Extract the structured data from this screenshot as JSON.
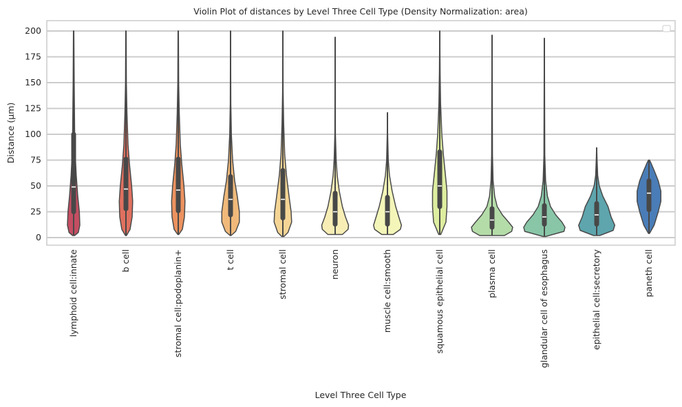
{
  "chart_data": {
    "type": "violin",
    "title": "Violin Plot of distances by Level Three Cell Type (Density Normalization: area)",
    "xlabel": "Level Three Cell Type",
    "ylabel": "Distance (µm)",
    "ylim": [
      -7,
      210
    ],
    "yticks": [
      0,
      25,
      50,
      75,
      100,
      125,
      150,
      175,
      200
    ],
    "grid": true,
    "legend": "top-right (empty)",
    "categories": [
      {
        "name": "lymphoid cell:innate",
        "color": "#c44e62",
        "min": 2,
        "q1": 25,
        "median": 49,
        "q3": 100,
        "max": 200,
        "density": [
          [
            2,
            0.1
          ],
          [
            5,
            0.45
          ],
          [
            12,
            0.6
          ],
          [
            25,
            0.55
          ],
          [
            40,
            0.4
          ],
          [
            60,
            0.25
          ],
          [
            80,
            0.15
          ],
          [
            100,
            0.1
          ],
          [
            150,
            0.05
          ],
          [
            200,
            0.02
          ]
        ]
      },
      {
        "name": "b cell",
        "color": "#e0705f",
        "min": 2,
        "q1": 28,
        "median": 47,
        "q3": 76,
        "max": 200,
        "density": [
          [
            2,
            0.05
          ],
          [
            8,
            0.4
          ],
          [
            20,
            0.6
          ],
          [
            35,
            0.65
          ],
          [
            50,
            0.55
          ],
          [
            70,
            0.35
          ],
          [
            90,
            0.2
          ],
          [
            120,
            0.1
          ],
          [
            150,
            0.04
          ],
          [
            200,
            0.02
          ]
        ]
      },
      {
        "name": "stromal cell:podoplanin+",
        "color": "#ec925f",
        "min": 3,
        "q1": 26,
        "median": 46,
        "q3": 76,
        "max": 200,
        "density": [
          [
            3,
            0.05
          ],
          [
            8,
            0.4
          ],
          [
            20,
            0.6
          ],
          [
            35,
            0.65
          ],
          [
            50,
            0.55
          ],
          [
            70,
            0.35
          ],
          [
            90,
            0.2
          ],
          [
            120,
            0.1
          ],
          [
            150,
            0.04
          ],
          [
            200,
            0.02
          ]
        ]
      },
      {
        "name": "t cell",
        "color": "#f0b97a",
        "min": 2,
        "q1": 22,
        "median": 37,
        "q3": 59,
        "max": 200,
        "density": [
          [
            2,
            0.05
          ],
          [
            6,
            0.5
          ],
          [
            15,
            0.85
          ],
          [
            25,
            0.85
          ],
          [
            40,
            0.65
          ],
          [
            55,
            0.4
          ],
          [
            75,
            0.2
          ],
          [
            100,
            0.08
          ],
          [
            130,
            0.03
          ],
          [
            200,
            0.01
          ]
        ]
      },
      {
        "name": "stromal cell",
        "color": "#f5d595",
        "min": 1,
        "q1": 19,
        "median": 37,
        "q3": 65,
        "max": 200,
        "density": [
          [
            1,
            0.1
          ],
          [
            5,
            0.5
          ],
          [
            15,
            0.85
          ],
          [
            25,
            0.8
          ],
          [
            40,
            0.6
          ],
          [
            60,
            0.35
          ],
          [
            80,
            0.18
          ],
          [
            110,
            0.08
          ],
          [
            140,
            0.03
          ],
          [
            200,
            0.01
          ]
        ]
      },
      {
        "name": "neuron",
        "color": "#f7edb5",
        "min": 3,
        "q1": 13,
        "median": 25,
        "q3": 43,
        "max": 194,
        "density": [
          [
            3,
            0.7
          ],
          [
            8,
            1.25
          ],
          [
            12,
            1.3
          ],
          [
            20,
            1.0
          ],
          [
            30,
            0.7
          ],
          [
            45,
            0.4
          ],
          [
            60,
            0.2
          ],
          [
            75,
            0.1
          ],
          [
            100,
            0.03
          ],
          [
            194,
            0.01
          ]
        ]
      },
      {
        "name": "muscle cell:smooth",
        "color": "#f3f6b8",
        "min": 3,
        "q1": 13,
        "median": 25,
        "q3": 39,
        "max": 121,
        "density": [
          [
            3,
            0.55
          ],
          [
            8,
            1.25
          ],
          [
            12,
            1.35
          ],
          [
            20,
            1.1
          ],
          [
            30,
            0.8
          ],
          [
            45,
            0.45
          ],
          [
            60,
            0.2
          ],
          [
            75,
            0.08
          ],
          [
            100,
            0.02
          ],
          [
            121,
            0.01
          ]
        ]
      },
      {
        "name": "squamous epithelial cell",
        "color": "#deeea0",
        "min": 3,
        "q1": 30,
        "median": 50,
        "q3": 83,
        "max": 200,
        "density": [
          [
            3,
            0.1
          ],
          [
            15,
            0.6
          ],
          [
            30,
            0.7
          ],
          [
            45,
            0.7
          ],
          [
            60,
            0.55
          ],
          [
            80,
            0.35
          ],
          [
            100,
            0.2
          ],
          [
            130,
            0.08
          ],
          [
            160,
            0.03
          ],
          [
            200,
            0.01
          ]
        ]
      },
      {
        "name": "plasma cell",
        "color": "#b4dca8",
        "min": 2,
        "q1": 10,
        "median": 17,
        "q3": 28,
        "max": 196,
        "density": [
          [
            2,
            1.2
          ],
          [
            6,
            1.9
          ],
          [
            10,
            2.0
          ],
          [
            15,
            1.6
          ],
          [
            22,
            1.0
          ],
          [
            30,
            0.5
          ],
          [
            40,
            0.25
          ],
          [
            55,
            0.1
          ],
          [
            80,
            0.04
          ],
          [
            196,
            0.01
          ]
        ]
      },
      {
        "name": "glandular cell of esophagus",
        "color": "#88c6a7",
        "min": 1,
        "q1": 13,
        "median": 20,
        "q3": 31,
        "max": 193,
        "density": [
          [
            1,
            0.1
          ],
          [
            6,
            1.9
          ],
          [
            10,
            2.0
          ],
          [
            15,
            1.7
          ],
          [
            22,
            1.1
          ],
          [
            30,
            0.6
          ],
          [
            40,
            0.3
          ],
          [
            55,
            0.12
          ],
          [
            80,
            0.04
          ],
          [
            193,
            0.01
          ]
        ]
      },
      {
        "name": "epithelial cell:secretory",
        "color": "#5ea5ad",
        "min": 2,
        "q1": 13,
        "median": 22,
        "q3": 33,
        "max": 87,
        "density": [
          [
            2,
            0.3
          ],
          [
            7,
            1.6
          ],
          [
            12,
            1.75
          ],
          [
            20,
            1.4
          ],
          [
            30,
            1.1
          ],
          [
            40,
            0.6
          ],
          [
            50,
            0.25
          ],
          [
            60,
            0.1
          ],
          [
            75,
            0.04
          ],
          [
            87,
            0.01
          ]
        ]
      },
      {
        "name": "paneth cell",
        "color": "#4a7db7",
        "min": 4,
        "q1": 27,
        "median": 43,
        "q3": 55,
        "max": 75,
        "density": [
          [
            4,
            0.05
          ],
          [
            12,
            0.5
          ],
          [
            25,
            0.9
          ],
          [
            35,
            1.15
          ],
          [
            45,
            1.15
          ],
          [
            55,
            0.9
          ],
          [
            65,
            0.5
          ],
          [
            72,
            0.2
          ],
          [
            75,
            0.05
          ]
        ]
      }
    ]
  }
}
